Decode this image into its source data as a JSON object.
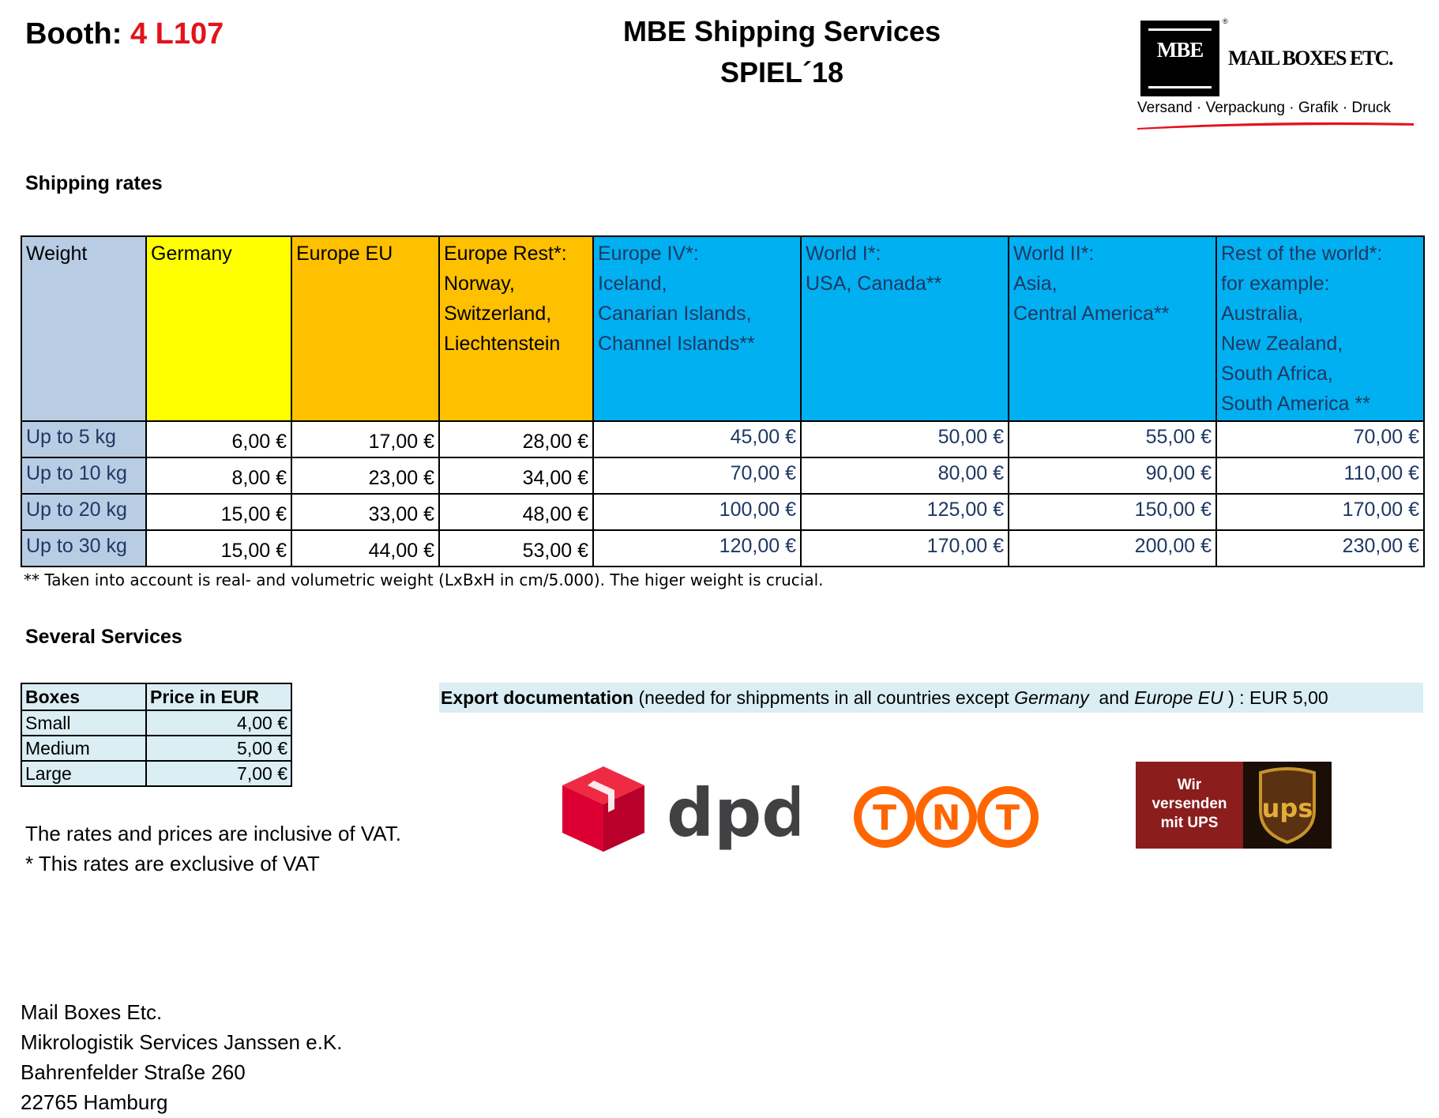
{
  "header": {
    "booth_label": "Booth:",
    "booth_number": "4 L107",
    "title_line1": "MBE Shipping Services",
    "title_line2": "SPIEL´18"
  },
  "logo": {
    "letters": "MBE",
    "name": "MAIL BOXES ETC.",
    "registered": "®",
    "tagline": "Versand · Verpackung · Grafik · Druck",
    "accent_color": "#e3131b"
  },
  "shipping_rates": {
    "heading": "Shipping rates",
    "columns": [
      {
        "lines": [
          "Weight"
        ],
        "color": "#b8cce4"
      },
      {
        "lines": [
          "Germany"
        ],
        "color": "#ffff00"
      },
      {
        "lines": [
          "Europe EU"
        ],
        "color": "#ffc000"
      },
      {
        "lines": [
          "Europe Rest*:",
          "Norway,",
          "Switzerland,",
          "Liechtenstein"
        ],
        "color": "#ffc000"
      },
      {
        "lines": [
          "Europe IV*:",
          "Iceland,",
          "Canarian Islands,",
          "Channel Islands**"
        ],
        "color": "#00b0f0"
      },
      {
        "lines": [
          "World I*:",
          "USA, Canada**"
        ],
        "color": "#00b0f0"
      },
      {
        "lines": [
          "World II*:",
          "Asia,",
          "Central America**"
        ],
        "color": "#00b0f0"
      },
      {
        "lines": [
          "Rest of the world*:",
          "for example:",
          "Australia,",
          "New Zealand,",
          "South Africa,",
          "South America **"
        ],
        "color": "#00b0f0"
      }
    ],
    "rows": [
      {
        "weight": "Up to 5 kg",
        "values": [
          "6,00 €",
          "17,00 €",
          "28,00 €",
          "45,00 €",
          "50,00 €",
          "55,00 €",
          "70,00 €"
        ]
      },
      {
        "weight": "Up to 10 kg",
        "values": [
          "8,00 €",
          "23,00 €",
          "34,00 €",
          "70,00 €",
          "80,00 €",
          "90,00 €",
          "110,00 €"
        ]
      },
      {
        "weight": "Up to  20 kg",
        "values": [
          "15,00 €",
          "33,00 €",
          "48,00 €",
          "100,00 €",
          "125,00 €",
          "150,00 €",
          "170,00 €"
        ]
      },
      {
        "weight": "Up to 30 kg",
        "values": [
          "15,00 €",
          "44,00 €",
          "53,00 €",
          "120,00 €",
          "170,00 €",
          "200,00 €",
          "230,00 €"
        ]
      }
    ],
    "footnote": "** Taken into account is real- and volumetric weight (LxBxH in cm/5.000). The higer weight is crucial."
  },
  "services": {
    "heading": "Several Services",
    "boxes_header": [
      "Boxes",
      "Price in EUR"
    ],
    "boxes": [
      {
        "name": "Small",
        "price": "4,00 €"
      },
      {
        "name": "Medium",
        "price": "5,00 €"
      },
      {
        "name": "Large",
        "price": "7,00 €"
      }
    ],
    "export_bold": "Export documentation",
    "export_text1": " (needed for shippments in all countries except ",
    "export_italic1": "Germany",
    "export_text2": "  and ",
    "export_italic2": "Europe EU",
    "export_text3": " ) : EUR 5,00"
  },
  "vat_notes": {
    "line1": "The rates and prices are inclusive of VAT.",
    "line2": "* This rates are exclusive of VAT"
  },
  "carriers": {
    "dpd_text": "dpd",
    "tnt_letters": [
      "T",
      "N",
      "T"
    ],
    "ups_line1": "Wir",
    "ups_line2": "versenden",
    "ups_line3": "mit UPS",
    "ups_shield_text": "ups",
    "dpd_color": "#dc0032",
    "tnt_color": "#ff6600",
    "ups_red": "#8b1d1d",
    "ups_gold": "#c8932b"
  },
  "address": {
    "line1": "Mail Boxes Etc.",
    "line2": "Mikrologistik Services Janssen e.K.",
    "line3": "Bahrenfelder Straße 260",
    "line4": "22765 Hamburg"
  }
}
